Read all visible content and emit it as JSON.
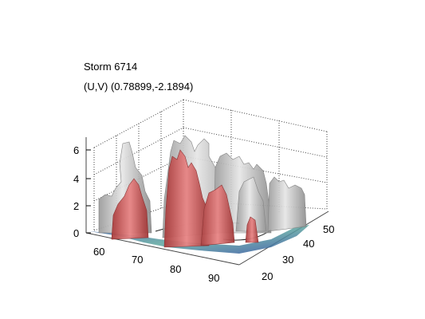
{
  "figure": {
    "title": "Storm 6714",
    "subtitle": "(U,V) (0.78899,-2.1894)"
  },
  "axes": {
    "z_ticks": [
      "0",
      "2",
      "4",
      "6"
    ],
    "x_ticks": [
      "60",
      "70",
      "80",
      "90"
    ],
    "y_ticks": [
      "20",
      "30",
      "40",
      "50"
    ]
  },
  "colors": {
    "inner_isosurface": "#cc5a5a",
    "outer_isosurface": "#b8b8b8",
    "floor_shading": "#4f6fb5",
    "grid": "#333333"
  }
}
